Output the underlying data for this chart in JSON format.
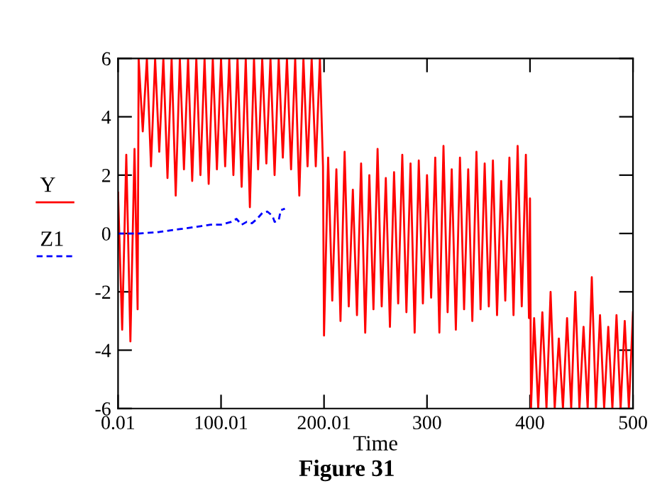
{
  "chart_data": {
    "type": "line",
    "title": "Figure 31",
    "xlabel": "Time",
    "legend": "left",
    "grid": false,
    "marker": "none",
    "xlim": [
      0.01,
      500
    ],
    "ylim": [
      -6,
      6
    ],
    "xticks": [
      0.01,
      100.01,
      200.01,
      300,
      400,
      500
    ],
    "yticks": [
      -6,
      -4,
      -2,
      0,
      2,
      4,
      6
    ],
    "series": [
      {
        "name": "Y",
        "color": "#ff0000",
        "line_style": "solid",
        "x": [
          0.01,
          4,
          8,
          12,
          16,
          19,
          20,
          24,
          28,
          32,
          36,
          40,
          44,
          48,
          52,
          56,
          60,
          64,
          68,
          72,
          76,
          80,
          84,
          88,
          92,
          96,
          100,
          104,
          108,
          112,
          116,
          120,
          124,
          128,
          132,
          136,
          140,
          144,
          148,
          152,
          156,
          160,
          164,
          168,
          172,
          176,
          180,
          184,
          188,
          192,
          196,
          199,
          200,
          204,
          208,
          212,
          216,
          220,
          224,
          228,
          232,
          236,
          240,
          244,
          248,
          252,
          256,
          260,
          264,
          268,
          272,
          276,
          280,
          284,
          288,
          292,
          296,
          300,
          304,
          308,
          312,
          316,
          320,
          324,
          328,
          332,
          336,
          340,
          344,
          348,
          352,
          356,
          360,
          364,
          368,
          372,
          376,
          380,
          384,
          388,
          392,
          396,
          399,
          400,
          401,
          404,
          408,
          412,
          416,
          420,
          424,
          428,
          432,
          436,
          440,
          444,
          448,
          452,
          456,
          460,
          464,
          468,
          472,
          476,
          480,
          484,
          488,
          492,
          496,
          500
        ],
        "values": [
          1.4,
          -3.3,
          2.7,
          -3.7,
          2.9,
          -2.6,
          6,
          3.5,
          6,
          2.3,
          6,
          2.8,
          6,
          1.9,
          6,
          1.3,
          6,
          2.2,
          6,
          1.8,
          6,
          2.0,
          6,
          1.7,
          6,
          2.2,
          6,
          2.3,
          6,
          2.0,
          6,
          1.6,
          6,
          0.9,
          6,
          2.2,
          6,
          2.4,
          6,
          2.0,
          6,
          2.6,
          6,
          2.2,
          6,
          1.3,
          6,
          2.3,
          6,
          2.3,
          6,
          2.3,
          -3.5,
          2.6,
          -2.3,
          2.2,
          -3.0,
          2.8,
          -2.5,
          1.5,
          -2.8,
          2.4,
          -3.4,
          2.0,
          -2.6,
          2.9,
          -2.5,
          1.9,
          -3.2,
          2.1,
          -2.4,
          2.7,
          -2.7,
          2.4,
          -3.4,
          2.5,
          -2.4,
          2.0,
          -2.2,
          2.6,
          -3.4,
          3.0,
          -2.7,
          2.2,
          -3.3,
          2.6,
          -2.6,
          2.2,
          -3.0,
          2.8,
          -2.6,
          2.4,
          -2.5,
          2.5,
          -2.8,
          1.8,
          -2.3,
          2.6,
          -2.8,
          3.0,
          -2.5,
          2.7,
          -2.9,
          1.2,
          -6,
          -2.9,
          -6,
          -2.7,
          -6,
          -2.0,
          -6,
          -3.6,
          -6,
          -2.9,
          -6,
          -2.0,
          -6,
          -3.2,
          -6,
          -1.5,
          -6,
          -2.8,
          -6,
          -3.2,
          -6,
          -2.8,
          -6,
          -3.0,
          -6,
          -2.7
        ]
      },
      {
        "name": "Z1",
        "color": "#0000ff",
        "line_style": "dashed",
        "x": [
          0.01,
          20,
          40,
          60,
          80,
          90,
          100,
          110,
          115,
          120,
          125,
          130,
          135,
          140,
          145,
          150,
          152,
          156,
          158,
          162
        ],
        "values": [
          0,
          0,
          0.05,
          0.15,
          0.25,
          0.3,
          0.3,
          0.4,
          0.5,
          0.3,
          0.4,
          0.35,
          0.5,
          0.7,
          0.75,
          0.6,
          0.4,
          0.45,
          0.8,
          0.85
        ]
      }
    ]
  }
}
